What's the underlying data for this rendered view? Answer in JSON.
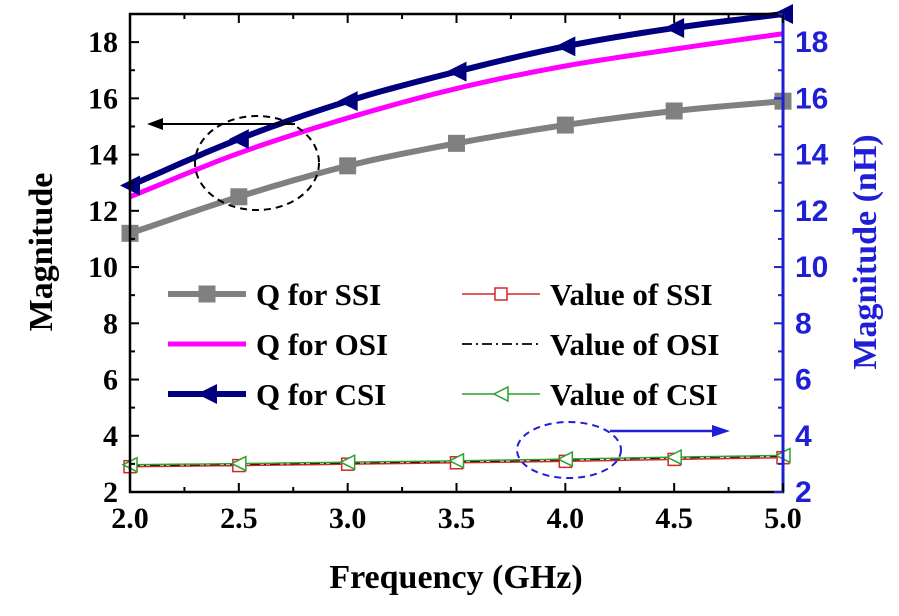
{
  "chart_data": {
    "type": "line",
    "xlabel": "Frequency (GHz)",
    "ylabel_left": "Magnitude",
    "ylabel_right": "Magnitude (nH)",
    "xlim": [
      2.0,
      5.0
    ],
    "ylim_left": [
      2,
      19
    ],
    "ylim_right": [
      2,
      19
    ],
    "x_ticks": [
      "2.0",
      "2.5",
      "3.0",
      "3.5",
      "4.0",
      "4.5",
      "5.0"
    ],
    "y_ticks_left": [
      "2",
      "4",
      "6",
      "8",
      "10",
      "12",
      "14",
      "16",
      "18"
    ],
    "y_ticks_right": [
      "2",
      "4",
      "6",
      "8",
      "10",
      "12",
      "14",
      "16",
      "18"
    ],
    "x": [
      2.0,
      2.5,
      3.0,
      3.5,
      4.0,
      4.5,
      5.0
    ],
    "series": [
      {
        "name": "Q for SSI",
        "axis": "left",
        "color": "#808080",
        "marker": "filled-square",
        "values": [
          11.2,
          12.5,
          13.6,
          14.4,
          15.05,
          15.55,
          15.9
        ]
      },
      {
        "name": "Q for OSI",
        "axis": "left",
        "color": "#ff00ff",
        "marker": "none",
        "values": [
          12.5,
          14.05,
          15.3,
          16.35,
          17.15,
          17.75,
          18.3
        ]
      },
      {
        "name": "Q for CSI",
        "axis": "left",
        "color": "#00007f",
        "marker": "filled-left-triangle",
        "values": [
          12.9,
          14.55,
          15.9,
          16.95,
          17.85,
          18.5,
          19.0
        ]
      },
      {
        "name": "Value of SSI",
        "axis": "right",
        "color": "#d62728",
        "marker": "open-square",
        "values": [
          2.9,
          2.94,
          2.99,
          3.04,
          3.09,
          3.16,
          3.22
        ]
      },
      {
        "name": "Value of OSI",
        "axis": "right",
        "color": "#000000",
        "marker": "dash-dot",
        "values": [
          2.95,
          2.99,
          3.04,
          3.09,
          3.15,
          3.22,
          3.28
        ]
      },
      {
        "name": "Value of CSI",
        "axis": "right",
        "color": "#2ca02c",
        "marker": "open-left-triangle",
        "values": [
          2.97,
          3.01,
          3.06,
          3.11,
          3.17,
          3.24,
          3.3
        ]
      }
    ],
    "legend_position": "center"
  }
}
